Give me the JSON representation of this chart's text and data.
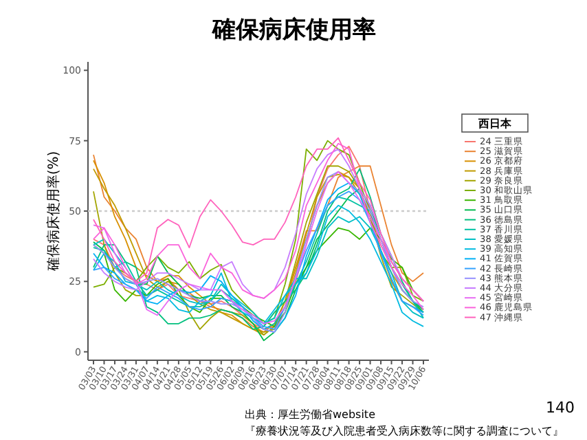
{
  "chart_data": {
    "type": "line",
    "title": "確保病床使用率",
    "ylabel": "確保病床使用率(%)",
    "legend_title": "西日本",
    "categories": [
      "03/03",
      "03/10",
      "03/17",
      "03/24",
      "03/31",
      "04/07",
      "04/14",
      "04/21",
      "04/28",
      "05/05",
      "05/12",
      "05/19",
      "05/26",
      "06/02",
      "06/09",
      "06/16",
      "06/23",
      "06/30",
      "07/07",
      "07/14",
      "07/21",
      "07/28",
      "08/04",
      "08/11",
      "08/18",
      "08/25",
      "09/01",
      "09/08",
      "09/15",
      "09/22",
      "09/29",
      "10/06"
    ],
    "ylim": [
      -3,
      103
    ],
    "yticks": [
      0,
      25,
      50,
      75,
      100
    ],
    "grid": false,
    "legend": "right",
    "line_style": "solid",
    "marker": "none",
    "ref_lines": [
      {
        "axis": "y",
        "value": 50,
        "color": "#cccccc",
        "line_style": "dotted"
      }
    ],
    "annotations": [
      "出典：厚生労働省website",
      "『療養状況等及び入院患者受入病床数等に関する調査について』",
      "140"
    ],
    "series": [
      {
        "name": "24 三重県",
        "color": "#f8766d",
        "values": [
          40,
          38,
          30,
          27,
          25,
          24,
          22,
          24,
          20,
          19,
          18,
          17,
          18,
          16,
          13,
          10,
          8,
          9,
          14,
          25,
          38,
          55,
          65,
          70,
          73,
          66,
          50,
          38,
          30,
          22,
          18,
          15
        ]
      },
      {
        "name": "25 滋賀県",
        "color": "#ea8331",
        "values": [
          70,
          55,
          50,
          44,
          40,
          30,
          25,
          26,
          22,
          21,
          18,
          16,
          15,
          14,
          12,
          9,
          7,
          10,
          18,
          30,
          43,
          43,
          52,
          62,
          64,
          66,
          66,
          52,
          38,
          28,
          25,
          28
        ]
      },
      {
        "name": "26 京都府",
        "color": "#d89000",
        "values": [
          68,
          60,
          48,
          40,
          30,
          27,
          25,
          27,
          27,
          23,
          20,
          17,
          14,
          13,
          10,
          8,
          6,
          9,
          16,
          30,
          40,
          52,
          60,
          64,
          62,
          58,
          48,
          36,
          28,
          22,
          18,
          15
        ]
      },
      {
        "name": "28 兵庫県",
        "color": "#c09b00",
        "values": [
          65,
          58,
          52,
          44,
          35,
          26,
          23,
          25,
          24,
          20,
          17,
          15,
          14,
          12,
          10,
          8,
          7,
          8,
          14,
          28,
          42,
          55,
          62,
          63,
          62,
          56,
          48,
          36,
          25,
          18,
          16,
          14
        ]
      },
      {
        "name": "29 奈良県",
        "color": "#a3a500",
        "values": [
          57,
          38,
          28,
          22,
          20,
          20,
          22,
          25,
          22,
          14,
          8,
          12,
          15,
          14,
          13,
          10,
          6,
          9,
          18,
          32,
          46,
          56,
          66,
          66,
          64,
          58,
          48,
          34,
          23,
          20,
          17,
          14
        ]
      },
      {
        "name": "30 和歌山県",
        "color": "#7cae00",
        "values": [
          23,
          24,
          30,
          28,
          25,
          30,
          34,
          30,
          28,
          32,
          26,
          29,
          31,
          22,
          18,
          14,
          10,
          12,
          24,
          40,
          72,
          68,
          75,
          72,
          70,
          60,
          50,
          35,
          30,
          30,
          20,
          18
        ]
      },
      {
        "name": "31 鳥取県",
        "color": "#39b600",
        "values": [
          38,
          35,
          22,
          18,
          22,
          20,
          24,
          26,
          20,
          16,
          14,
          19,
          19,
          18,
          16,
          13,
          11,
          9,
          14,
          24,
          30,
          36,
          40,
          44,
          43,
          40,
          44,
          40,
          33,
          30,
          22,
          18
        ]
      },
      {
        "name": "35 山口県",
        "color": "#00bb4e",
        "values": [
          39,
          36,
          30,
          26,
          24,
          24,
          34,
          28,
          24,
          20,
          19,
          20,
          20,
          16,
          14,
          10,
          4,
          7,
          12,
          22,
          30,
          40,
          45,
          50,
          55,
          58,
          52,
          40,
          30,
          22,
          18,
          14
        ]
      },
      {
        "name": "36 徳島県",
        "color": "#00bf7d",
        "values": [
          30,
          38,
          38,
          32,
          30,
          16,
          14,
          10,
          10,
          12,
          12,
          13,
          15,
          14,
          12,
          8,
          9,
          14,
          18,
          22,
          28,
          38,
          50,
          56,
          58,
          65,
          55,
          42,
          34,
          25,
          18,
          15
        ]
      },
      {
        "name": "37 香川県",
        "color": "#00c1a3",
        "values": [
          37,
          36,
          30,
          32,
          25,
          20,
          22,
          20,
          18,
          16,
          16,
          18,
          22,
          19,
          16,
          12,
          8,
          10,
          16,
          24,
          32,
          42,
          52,
          55,
          54,
          52,
          50,
          40,
          30,
          24,
          18,
          12
        ]
      },
      {
        "name": "38 愛媛県",
        "color": "#00bfc4",
        "values": [
          38,
          40,
          35,
          30,
          24,
          22,
          25,
          22,
          20,
          18,
          17,
          18,
          24,
          20,
          17,
          14,
          10,
          12,
          20,
          26,
          26,
          34,
          44,
          48,
          46,
          48,
          44,
          36,
          28,
          18,
          14,
          12
        ]
      },
      {
        "name": "39 高知県",
        "color": "#00bae0",
        "values": [
          29,
          35,
          32,
          25,
          24,
          18,
          20,
          19,
          15,
          14,
          18,
          20,
          28,
          18,
          14,
          12,
          10,
          15,
          20,
          24,
          28,
          36,
          48,
          52,
          50,
          46,
          40,
          32,
          24,
          14,
          11,
          9
        ]
      },
      {
        "name": "41 佐賀県",
        "color": "#00b0f6",
        "values": [
          35,
          30,
          28,
          24,
          22,
          18,
          17,
          20,
          22,
          21,
          22,
          27,
          25,
          20,
          16,
          11,
          8,
          7,
          12,
          20,
          34,
          44,
          54,
          58,
          60,
          56,
          46,
          36,
          26,
          18,
          16,
          14
        ]
      },
      {
        "name": "42 長崎県",
        "color": "#35a2ff",
        "values": [
          29,
          30,
          26,
          24,
          22,
          19,
          23,
          21,
          19,
          16,
          15,
          16,
          19,
          18,
          16,
          12,
          9,
          8,
          16,
          26,
          36,
          44,
          52,
          55,
          57,
          54,
          46,
          35,
          26,
          18,
          16,
          13
        ]
      },
      {
        "name": "43 熊本県",
        "color": "#9590ff",
        "values": [
          38,
          35,
          30,
          26,
          24,
          25,
          26,
          24,
          22,
          20,
          18,
          18,
          17,
          17,
          15,
          12,
          8,
          7,
          14,
          27,
          40,
          52,
          62,
          64,
          60,
          57,
          50,
          40,
          30,
          22,
          18,
          16
        ]
      },
      {
        "name": "44 大分県",
        "color": "#c77cff",
        "values": [
          33,
          28,
          25,
          23,
          22,
          25,
          28,
          28,
          26,
          24,
          22,
          22,
          30,
          32,
          24,
          20,
          19,
          22,
          30,
          42,
          56,
          65,
          70,
          72,
          66,
          58,
          52,
          42,
          34,
          26,
          22,
          18
        ]
      },
      {
        "name": "45 宮崎県",
        "color": "#e76bf3",
        "values": [
          45,
          44,
          35,
          28,
          25,
          15,
          13,
          18,
          22,
          24,
          23,
          22,
          22,
          18,
          15,
          13,
          10,
          11,
          16,
          26,
          38,
          50,
          60,
          64,
          60,
          54,
          48,
          40,
          32,
          26,
          22,
          18
        ]
      },
      {
        "name": "46 鹿児島県",
        "color": "#fa62db",
        "values": [
          40,
          44,
          38,
          30,
          24,
          26,
          34,
          38,
          38,
          30,
          26,
          35,
          30,
          28,
          22,
          20,
          19,
          22,
          26,
          36,
          52,
          60,
          68,
          74,
          72,
          58,
          46,
          38,
          30,
          24,
          20,
          15
        ]
      },
      {
        "name": "47 沖縄県",
        "color": "#ff62bc",
        "values": [
          47,
          40,
          32,
          28,
          25,
          28,
          44,
          47,
          45,
          37,
          48,
          54,
          50,
          45,
          39,
          38,
          40,
          40,
          46,
          55,
          66,
          72,
          72,
          76,
          68,
          60,
          54,
          42,
          32,
          26,
          22,
          18
        ]
      }
    ]
  }
}
